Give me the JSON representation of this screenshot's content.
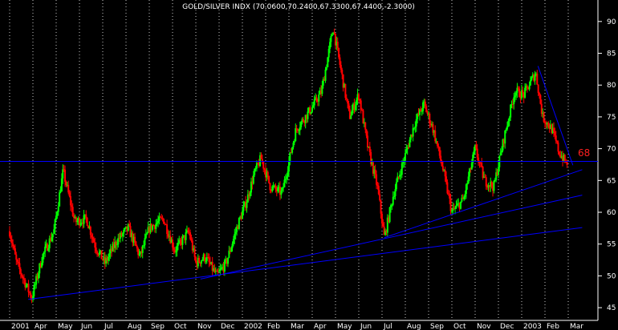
{
  "chart_data": {
    "type": "candlestick",
    "title": "GOLD/SILVER INDX (70.0600,70.2400,67.3300,67.4400,-2.3000)",
    "ylim": [
      43,
      93
    ],
    "y_ticks": [
      45,
      50,
      55,
      60,
      65,
      70,
      75,
      80,
      85,
      90
    ],
    "x_tick_labels": [
      "2001",
      "Apr",
      "May",
      "Jun",
      "Jul",
      "Aug",
      "Sep",
      "Oct",
      "Nov",
      "Dec",
      "2002",
      "Feb",
      "Mar",
      "Apr",
      "May",
      "Jun",
      "Jul",
      "Aug",
      "Sep",
      "Oct",
      "Nov",
      "Dec",
      "2003",
      "Feb",
      "Mar"
    ],
    "grid": "vertical dotted, one per month",
    "colors": {
      "background": "#000000",
      "up": "#00ff00",
      "down": "#ff0000",
      "trendline": "#0000ff",
      "grid": "#c8c8c8",
      "text": "#ffffff",
      "annotation": "#ff2020"
    },
    "price_path": [
      [
        0,
        57
      ],
      [
        0.3,
        52
      ],
      [
        0.6,
        49.5
      ],
      [
        0.95,
        46.5
      ],
      [
        1.4,
        53
      ],
      [
        1.9,
        57
      ],
      [
        2.3,
        66.5
      ],
      [
        2.8,
        58.5
      ],
      [
        3.3,
        59
      ],
      [
        3.7,
        54.5
      ],
      [
        4.1,
        52
      ],
      [
        4.6,
        55.5
      ],
      [
        5.1,
        57.5
      ],
      [
        5.6,
        53
      ],
      [
        6.0,
        57.5
      ],
      [
        6.6,
        59
      ],
      [
        7.1,
        54
      ],
      [
        7.7,
        57
      ],
      [
        8.0,
        52
      ],
      [
        8.4,
        53
      ],
      [
        8.9,
        50
      ],
      [
        9.3,
        52
      ],
      [
        9.8,
        58
      ],
      [
        10.2,
        62
      ],
      [
        10.5,
        66
      ],
      [
        10.8,
        68.5
      ],
      [
        11.2,
        64
      ],
      [
        11.7,
        63
      ],
      [
        12.3,
        73
      ],
      [
        13.0,
        76.5
      ],
      [
        13.4,
        79
      ],
      [
        13.9,
        89
      ],
      [
        14.2,
        83
      ],
      [
        14.6,
        75
      ],
      [
        15.0,
        78.5
      ],
      [
        15.4,
        70
      ],
      [
        15.8,
        64
      ],
      [
        16.1,
        56
      ],
      [
        16.5,
        63
      ],
      [
        17.0,
        69
      ],
      [
        17.4,
        74
      ],
      [
        17.8,
        77
      ],
      [
        18.2,
        73
      ],
      [
        18.6,
        67
      ],
      [
        19.0,
        60
      ],
      [
        19.5,
        62
      ],
      [
        20.0,
        70
      ],
      [
        20.4,
        65
      ],
      [
        20.8,
        64
      ],
      [
        21.2,
        71
      ],
      [
        21.7,
        79
      ],
      [
        22.1,
        78.5
      ],
      [
        22.6,
        82
      ],
      [
        22.9,
        75
      ],
      [
        23.3,
        73
      ],
      [
        23.6,
        69.5
      ],
      [
        23.95,
        67.4
      ]
    ],
    "last_close": 67.44,
    "reference_line": 68,
    "trendlines": [
      {
        "from": [
          0.8,
          46.3
        ],
        "to": [
          24.6,
          57.6
        ]
      },
      {
        "from": [
          8.2,
          49.5
        ],
        "to": [
          24.6,
          62.7
        ]
      },
      {
        "from": [
          16.1,
          56
        ],
        "to": [
          24.6,
          66.7
        ]
      },
      {
        "from": [
          22.7,
          83
        ],
        "to": [
          24.2,
          67.4
        ]
      }
    ],
    "annotation": "68"
  }
}
